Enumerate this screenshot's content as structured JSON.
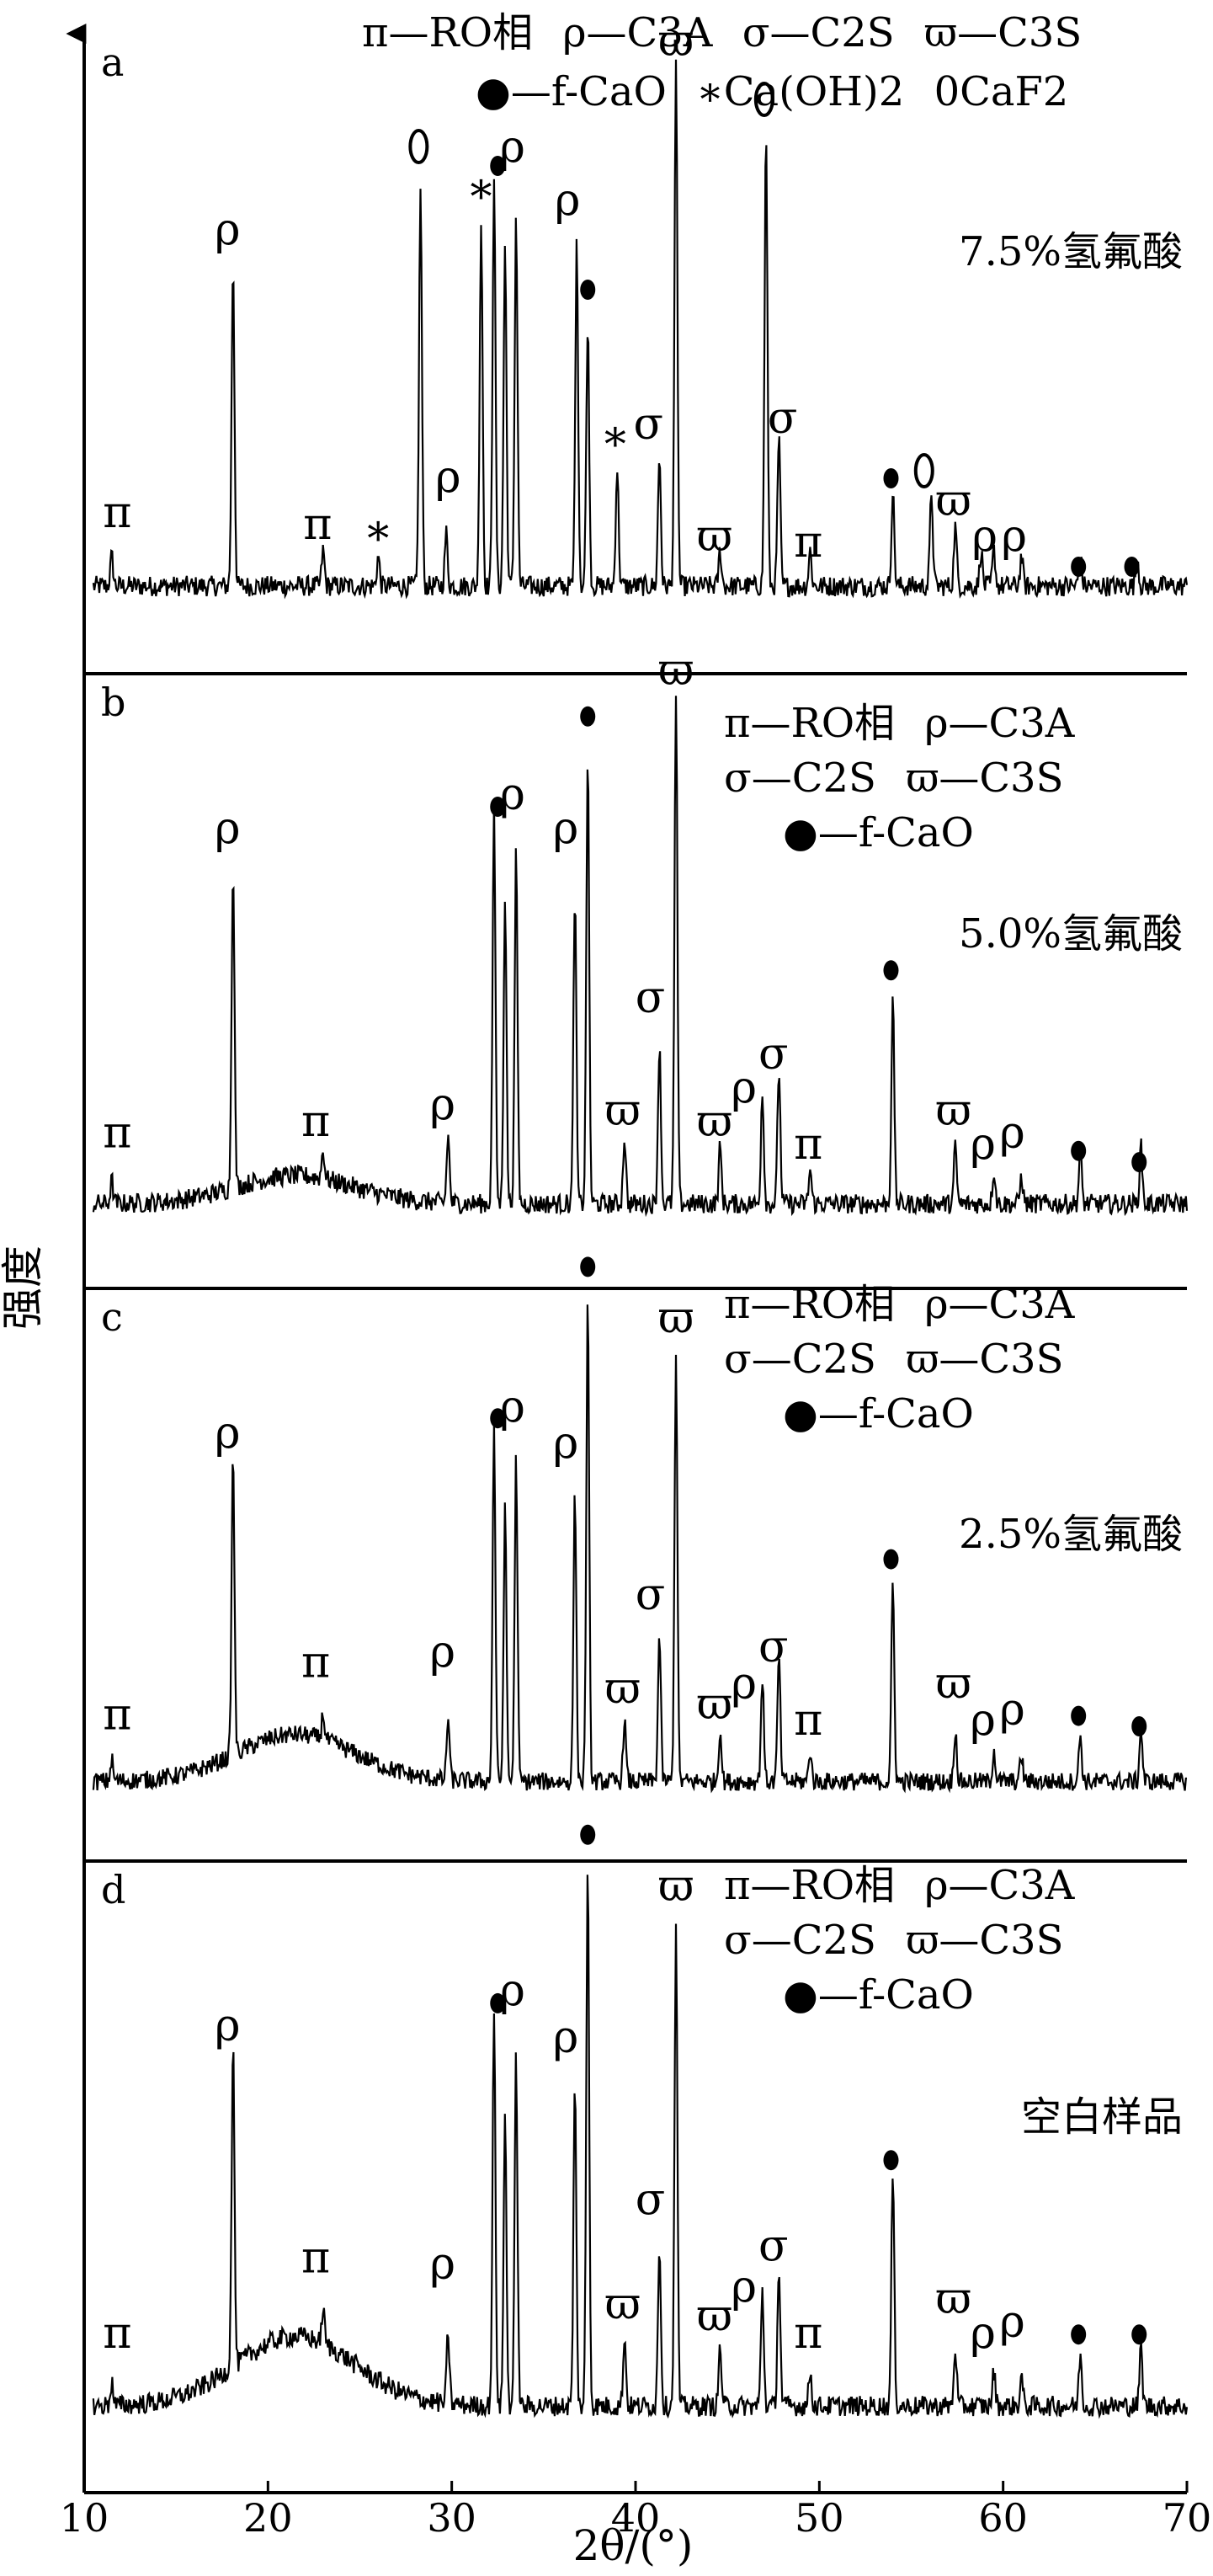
{
  "chart_data": {
    "type": "line",
    "ylabel": "强度",
    "xlabel": "2θ/(°)",
    "xlim": [
      10,
      70
    ],
    "x_ticks": [
      "10",
      "20",
      "30",
      "40",
      "50",
      "60",
      "70"
    ],
    "symbols": {
      "pi": "π",
      "rho": "ρ",
      "sigma": "σ",
      "varpi": "ϖ",
      "cao": "●",
      "caoh": "∗",
      "caf": "0"
    },
    "legend_a": {
      "line1": [
        {
          "sym": "π",
          "text": "—RO相"
        },
        {
          "sym": "ρ",
          "text": "—C3A"
        },
        {
          "sym": "σ",
          "text": "—C2S"
        },
        {
          "sym": "ϖ",
          "text": "—C3S"
        }
      ],
      "line2": [
        {
          "sym": "●",
          "text": "—f-CaO"
        },
        {
          "sym": "∗",
          "text": "Ca(OH)2"
        },
        {
          "sym": "0",
          "text": "CaF2"
        }
      ]
    },
    "legend_bcd": {
      "line1": [
        {
          "sym": "π",
          "text": "—RO相"
        },
        {
          "sym": "ρ",
          "text": "—C3A"
        }
      ],
      "line2": [
        {
          "sym": "σ",
          "text": "—C2S"
        },
        {
          "sym": "ϖ",
          "text": "—C3S"
        }
      ],
      "line3": [
        {
          "sym": "●",
          "text": "—f-CaO"
        }
      ]
    },
    "panels": [
      {
        "id": "a",
        "label": "a",
        "sample": "7.5%氢氟酸",
        "baseline": 0.12,
        "hump": 0.0,
        "peaks": [
          {
            "x": 11.5,
            "h": 0.05
          },
          {
            "x": 18.1,
            "h": 0.55
          },
          {
            "x": 23.0,
            "h": 0.06
          },
          {
            "x": 26.0,
            "h": 0.05
          },
          {
            "x": 28.3,
            "h": 0.68
          },
          {
            "x": 29.7,
            "h": 0.09
          },
          {
            "x": 31.6,
            "h": 0.62
          },
          {
            "x": 32.3,
            "h": 0.7
          },
          {
            "x": 32.9,
            "h": 0.58
          },
          {
            "x": 33.5,
            "h": 0.63
          },
          {
            "x": 36.8,
            "h": 0.58
          },
          {
            "x": 37.4,
            "h": 0.45
          },
          {
            "x": 39.0,
            "h": 0.2
          },
          {
            "x": 41.3,
            "h": 0.22
          },
          {
            "x": 42.2,
            "h": 0.88
          },
          {
            "x": 44.6,
            "h": 0.06
          },
          {
            "x": 47.1,
            "h": 0.78
          },
          {
            "x": 47.8,
            "h": 0.25
          },
          {
            "x": 49.5,
            "h": 0.06
          },
          {
            "x": 54.0,
            "h": 0.16
          },
          {
            "x": 56.1,
            "h": 0.16
          },
          {
            "x": 57.4,
            "h": 0.1
          },
          {
            "x": 58.8,
            "h": 0.06
          },
          {
            "x": 59.5,
            "h": 0.06
          },
          {
            "x": 61.0,
            "h": 0.05
          },
          {
            "x": 64.2,
            "h": 0.05
          },
          {
            "x": 67.3,
            "h": 0.05
          }
        ],
        "markers": [
          {
            "sym": "π",
            "x": 11.8,
            "y": 0.22
          },
          {
            "sym": "ρ",
            "x": 17.8,
            "y": 0.7
          },
          {
            "sym": "π",
            "x": 22.7,
            "y": 0.2
          },
          {
            "sym": "∗",
            "x": 26.0,
            "y": 0.19
          },
          {
            "sym": "0",
            "x": 28.2,
            "y": 0.84
          },
          {
            "sym": "ρ",
            "x": 29.8,
            "y": 0.28
          },
          {
            "sym": "∗",
            "x": 31.6,
            "y": 0.77
          },
          {
            "sym": "●",
            "x": 32.5,
            "y": 0.81
          },
          {
            "sym": "ρ",
            "x": 33.3,
            "y": 0.84
          },
          {
            "sym": "ρ",
            "x": 36.3,
            "y": 0.75
          },
          {
            "sym": "●",
            "x": 37.4,
            "y": 0.6
          },
          {
            "sym": "∗",
            "x": 38.9,
            "y": 0.35
          },
          {
            "sym": "σ",
            "x": 40.7,
            "y": 0.37
          },
          {
            "sym": "ϖ",
            "x": 42.2,
            "y": 1.02
          },
          {
            "sym": "ϖ",
            "x": 44.3,
            "y": 0.18
          },
          {
            "sym": "0",
            "x": 47.0,
            "y": 0.92
          },
          {
            "sym": "σ",
            "x": 48.0,
            "y": 0.38
          },
          {
            "sym": "π",
            "x": 49.4,
            "y": 0.17
          },
          {
            "sym": "●",
            "x": 53.9,
            "y": 0.28
          },
          {
            "sym": "0",
            "x": 55.7,
            "y": 0.29
          },
          {
            "sym": "ϖ",
            "x": 57.3,
            "y": 0.24
          },
          {
            "sym": "ρ",
            "x": 59.0,
            "y": 0.18
          },
          {
            "sym": "ρ",
            "x": 60.6,
            "y": 0.18
          },
          {
            "sym": "●",
            "x": 64.1,
            "y": 0.13
          },
          {
            "sym": "●",
            "x": 67.0,
            "y": 0.13
          }
        ]
      },
      {
        "id": "b",
        "label": "b",
        "sample": "5.0%氢氟酸",
        "baseline": 0.12,
        "hump": 0.05,
        "peaks": [
          {
            "x": 11.5,
            "h": 0.04
          },
          {
            "x": 18.1,
            "h": 0.58
          },
          {
            "x": 23.0,
            "h": 0.05
          },
          {
            "x": 29.8,
            "h": 0.12
          },
          {
            "x": 32.3,
            "h": 0.7
          },
          {
            "x": 32.9,
            "h": 0.55
          },
          {
            "x": 33.5,
            "h": 0.62
          },
          {
            "x": 36.7,
            "h": 0.55
          },
          {
            "x": 37.4,
            "h": 0.8
          },
          {
            "x": 39.4,
            "h": 0.12
          },
          {
            "x": 41.3,
            "h": 0.28
          },
          {
            "x": 42.2,
            "h": 0.9
          },
          {
            "x": 44.6,
            "h": 0.1
          },
          {
            "x": 46.9,
            "h": 0.2
          },
          {
            "x": 47.8,
            "h": 0.24
          },
          {
            "x": 49.5,
            "h": 0.06
          },
          {
            "x": 54.0,
            "h": 0.36
          },
          {
            "x": 57.4,
            "h": 0.1
          },
          {
            "x": 59.5,
            "h": 0.06
          },
          {
            "x": 61.0,
            "h": 0.05
          },
          {
            "x": 64.2,
            "h": 0.09
          },
          {
            "x": 67.5,
            "h": 0.1
          }
        ],
        "markers": [
          {
            "sym": "π",
            "x": 11.8,
            "y": 0.22
          },
          {
            "sym": "ρ",
            "x": 17.8,
            "y": 0.76
          },
          {
            "sym": "π",
            "x": 22.6,
            "y": 0.24
          },
          {
            "sym": "ρ",
            "x": 29.5,
            "y": 0.27
          },
          {
            "sym": "●",
            "x": 32.5,
            "y": 0.8
          },
          {
            "sym": "ρ",
            "x": 33.3,
            "y": 0.82
          },
          {
            "sym": "ρ",
            "x": 36.2,
            "y": 0.76
          },
          {
            "sym": "●",
            "x": 37.4,
            "y": 0.96
          },
          {
            "sym": "ϖ",
            "x": 39.3,
            "y": 0.26
          },
          {
            "sym": "σ",
            "x": 40.8,
            "y": 0.46
          },
          {
            "sym": "ϖ",
            "x": 42.2,
            "y": 1.04
          },
          {
            "sym": "ϖ",
            "x": 44.3,
            "y": 0.24
          },
          {
            "sym": "ρ",
            "x": 45.9,
            "y": 0.3
          },
          {
            "sym": "σ",
            "x": 47.5,
            "y": 0.36
          },
          {
            "sym": "π",
            "x": 49.4,
            "y": 0.2
          },
          {
            "sym": "●",
            "x": 53.9,
            "y": 0.51
          },
          {
            "sym": "ϖ",
            "x": 57.3,
            "y": 0.26
          },
          {
            "sym": "ρ",
            "x": 58.9,
            "y": 0.2
          },
          {
            "sym": "ρ",
            "x": 60.5,
            "y": 0.22
          },
          {
            "sym": "●",
            "x": 64.1,
            "y": 0.19
          },
          {
            "sym": "●",
            "x": 67.4,
            "y": 0.17
          }
        ]
      },
      {
        "id": "c",
        "label": "c",
        "sample": "2.5%氢氟酸",
        "baseline": 0.12,
        "hump": 0.09,
        "peaks": [
          {
            "x": 11.5,
            "h": 0.04
          },
          {
            "x": 18.1,
            "h": 0.58
          },
          {
            "x": 23.0,
            "h": 0.05
          },
          {
            "x": 29.8,
            "h": 0.12
          },
          {
            "x": 32.3,
            "h": 0.68
          },
          {
            "x": 32.9,
            "h": 0.52
          },
          {
            "x": 33.5,
            "h": 0.62
          },
          {
            "x": 36.7,
            "h": 0.55
          },
          {
            "x": 37.4,
            "h": 0.92
          },
          {
            "x": 39.4,
            "h": 0.12
          },
          {
            "x": 41.3,
            "h": 0.28
          },
          {
            "x": 42.2,
            "h": 0.82
          },
          {
            "x": 44.6,
            "h": 0.1
          },
          {
            "x": 46.9,
            "h": 0.2
          },
          {
            "x": 47.8,
            "h": 0.24
          },
          {
            "x": 49.5,
            "h": 0.06
          },
          {
            "x": 54.0,
            "h": 0.38
          },
          {
            "x": 57.4,
            "h": 0.1
          },
          {
            "x": 59.5,
            "h": 0.06
          },
          {
            "x": 61.0,
            "h": 0.05
          },
          {
            "x": 64.2,
            "h": 0.09
          },
          {
            "x": 67.5,
            "h": 0.1
          }
        ],
        "markers": [
          {
            "sym": "π",
            "x": 11.8,
            "y": 0.22
          },
          {
            "sym": "ρ",
            "x": 17.8,
            "y": 0.76
          },
          {
            "sym": "π",
            "x": 22.6,
            "y": 0.32
          },
          {
            "sym": "ρ",
            "x": 29.5,
            "y": 0.34
          },
          {
            "sym": "●",
            "x": 32.5,
            "y": 0.79
          },
          {
            "sym": "ρ",
            "x": 33.3,
            "y": 0.81
          },
          {
            "sym": "ρ",
            "x": 36.2,
            "y": 0.74
          },
          {
            "sym": "●",
            "x": 37.4,
            "y": 1.08
          },
          {
            "sym": "ϖ",
            "x": 39.3,
            "y": 0.27
          },
          {
            "sym": "σ",
            "x": 40.8,
            "y": 0.45
          },
          {
            "sym": "ϖ",
            "x": 42.2,
            "y": 0.98
          },
          {
            "sym": "ϖ",
            "x": 44.3,
            "y": 0.24
          },
          {
            "sym": "ρ",
            "x": 45.9,
            "y": 0.28
          },
          {
            "sym": "σ",
            "x": 47.5,
            "y": 0.35
          },
          {
            "sym": "π",
            "x": 49.4,
            "y": 0.21
          },
          {
            "sym": "●",
            "x": 53.9,
            "y": 0.52
          },
          {
            "sym": "ϖ",
            "x": 57.3,
            "y": 0.28
          },
          {
            "sym": "ρ",
            "x": 58.9,
            "y": 0.21
          },
          {
            "sym": "ρ",
            "x": 60.5,
            "y": 0.23
          },
          {
            "sym": "●",
            "x": 64.1,
            "y": 0.22
          },
          {
            "sym": "●",
            "x": 67.4,
            "y": 0.2
          }
        ]
      },
      {
        "id": "d",
        "label": "d",
        "sample": "空白样品",
        "baseline": 0.12,
        "hump": 0.12,
        "peaks": [
          {
            "x": 11.5,
            "h": 0.04
          },
          {
            "x": 18.1,
            "h": 0.56
          },
          {
            "x": 23.0,
            "h": 0.06
          },
          {
            "x": 29.8,
            "h": 0.12
          },
          {
            "x": 32.3,
            "h": 0.68
          },
          {
            "x": 32.9,
            "h": 0.5
          },
          {
            "x": 33.5,
            "h": 0.6
          },
          {
            "x": 36.7,
            "h": 0.55
          },
          {
            "x": 37.4,
            "h": 0.94
          },
          {
            "x": 39.4,
            "h": 0.12
          },
          {
            "x": 41.3,
            "h": 0.28
          },
          {
            "x": 42.2,
            "h": 0.82
          },
          {
            "x": 44.6,
            "h": 0.1
          },
          {
            "x": 46.9,
            "h": 0.2
          },
          {
            "x": 47.8,
            "h": 0.24
          },
          {
            "x": 49.5,
            "h": 0.06
          },
          {
            "x": 54.0,
            "h": 0.4
          },
          {
            "x": 57.4,
            "h": 0.1
          },
          {
            "x": 59.5,
            "h": 0.06
          },
          {
            "x": 61.0,
            "h": 0.05
          },
          {
            "x": 64.2,
            "h": 0.09
          },
          {
            "x": 67.5,
            "h": 0.1
          }
        ],
        "markers": [
          {
            "sym": "π",
            "x": 11.8,
            "y": 0.22
          },
          {
            "sym": "ρ",
            "x": 17.8,
            "y": 0.75
          },
          {
            "sym": "π",
            "x": 22.6,
            "y": 0.35
          },
          {
            "sym": "ρ",
            "x": 29.5,
            "y": 0.34
          },
          {
            "sym": "●",
            "x": 32.5,
            "y": 0.79
          },
          {
            "sym": "ρ",
            "x": 33.3,
            "y": 0.81
          },
          {
            "sym": "ρ",
            "x": 36.2,
            "y": 0.73
          },
          {
            "sym": "●",
            "x": 37.4,
            "y": 1.08
          },
          {
            "sym": "ϖ",
            "x": 39.3,
            "y": 0.27
          },
          {
            "sym": "σ",
            "x": 40.8,
            "y": 0.45
          },
          {
            "sym": "ϖ",
            "x": 42.2,
            "y": 0.99
          },
          {
            "sym": "ϖ",
            "x": 44.3,
            "y": 0.25
          },
          {
            "sym": "ρ",
            "x": 45.9,
            "y": 0.3
          },
          {
            "sym": "σ",
            "x": 47.5,
            "y": 0.37
          },
          {
            "sym": "π",
            "x": 49.4,
            "y": 0.22
          },
          {
            "sym": "●",
            "x": 53.9,
            "y": 0.52
          },
          {
            "sym": "ϖ",
            "x": 57.3,
            "y": 0.28
          },
          {
            "sym": "ρ",
            "x": 58.9,
            "y": 0.22
          },
          {
            "sym": "ρ",
            "x": 60.5,
            "y": 0.24
          },
          {
            "sym": "●",
            "x": 64.1,
            "y": 0.22
          },
          {
            "sym": "●",
            "x": 67.4,
            "y": 0.22
          }
        ]
      }
    ]
  }
}
